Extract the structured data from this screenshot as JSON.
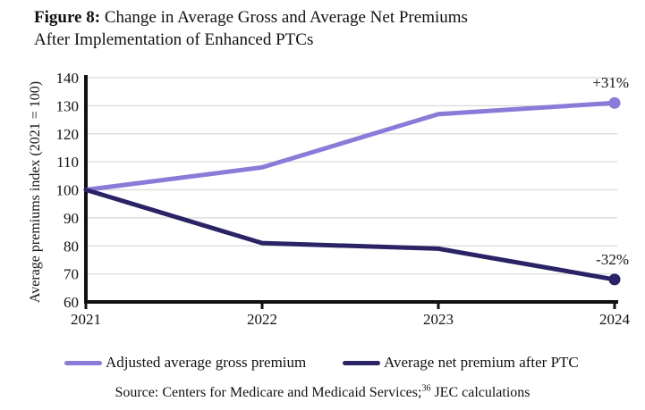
{
  "figure": {
    "title_prefix": "Figure 8:",
    "title_rest": " Change in Average Gross and Average Net Premiums",
    "title_line2": "After Implementation of Enhanced PTCs"
  },
  "chart_data": {
    "type": "line",
    "categories": [
      "2021",
      "2022",
      "2023",
      "2024"
    ],
    "series": [
      {
        "name": "Adjusted average gross premium",
        "values": [
          100,
          108,
          127,
          131
        ],
        "color": "#8a7bd8",
        "end_label": "+31%"
      },
      {
        "name": "Average net premium after PTC",
        "values": [
          100,
          81,
          79,
          68
        ],
        "color": "#2a2365",
        "end_label": "-32%"
      }
    ],
    "title": "Figure 8: Change in Average Gross and Average Net Premiums After Implementation of Enhanced PTCs",
    "xlabel": "",
    "ylabel": "Average premiums index (2021 = 100)",
    "ylim": [
      60,
      140
    ],
    "y_ticks": [
      60,
      70,
      80,
      90,
      100,
      110,
      120,
      130,
      140
    ],
    "grid": "horizontal-light-gray",
    "legend_position": "bottom",
    "marker": "circle-at-last-point",
    "grid_color": "#d9d9d9",
    "axis_color": "#111111"
  },
  "legend": {
    "items": [
      {
        "label": "Adjusted average gross premium",
        "color": "#8a7bd8"
      },
      {
        "label": "Average net premium after PTC",
        "color": "#2a2365"
      }
    ]
  },
  "source": {
    "prefix": "Source: Centers for Medicare and Medicaid Services;",
    "superscript": "36",
    "suffix": " JEC calculations"
  }
}
